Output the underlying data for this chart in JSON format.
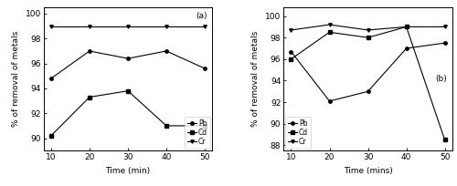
{
  "panel_a": {
    "time": [
      10,
      20,
      30,
      40,
      50
    ],
    "Pb": [
      94.8,
      97.0,
      96.4,
      97.0,
      95.6
    ],
    "Cd": [
      90.2,
      93.3,
      93.8,
      91.0,
      91.0
    ],
    "Cr": [
      99.0,
      99.0,
      99.0,
      99.0,
      99.0
    ],
    "xlabel": "Time (min)",
    "ylabel": "% of removal of metals",
    "label": "(a)",
    "ylim": [
      89,
      100.5
    ],
    "yticks": [
      90,
      92,
      94,
      96,
      98,
      100
    ]
  },
  "panel_b": {
    "time": [
      10,
      20,
      30,
      40,
      50
    ],
    "Pb": [
      96.7,
      92.1,
      93.0,
      97.0,
      97.5
    ],
    "Cd": [
      96.0,
      98.5,
      98.0,
      99.0,
      88.5
    ],
    "Cr": [
      98.7,
      99.2,
      98.7,
      99.0,
      99.0
    ],
    "xlabel": "Time (mins)",
    "ylabel": "% of removal of metals",
    "label": "(b)",
    "ylim": [
      87.5,
      100.8
    ],
    "yticks": [
      88,
      90,
      92,
      94,
      96,
      98,
      100
    ]
  },
  "line_color": "black",
  "marker_circle": "o",
  "marker_square": "s",
  "marker_triangle": "v",
  "legend_labels": [
    "Pb",
    "Cd",
    "Cr"
  ],
  "background_color": "white",
  "font_size": 6.5
}
